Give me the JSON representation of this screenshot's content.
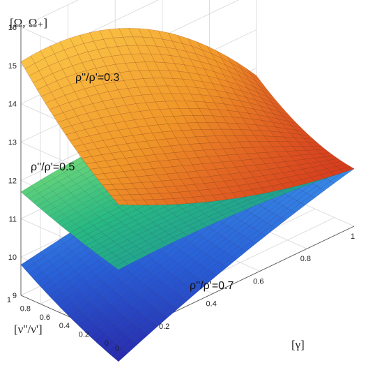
{
  "chart_data": {
    "type": "surface",
    "title": "",
    "zlabel": "[Ω, Ω₊]",
    "xlabel": "[γ]",
    "ylabel": "[ν''/ν']",
    "xlim": [
      0,
      1
    ],
    "ylim": [
      0,
      1
    ],
    "zlim": [
      9,
      16
    ],
    "xticks": [
      "0",
      "0.2",
      "0.4",
      "0.6",
      "0.8",
      "1"
    ],
    "yticks": [
      "0",
      "0.2",
      "0.4",
      "0.6",
      "0.8",
      "1"
    ],
    "zticks": [
      "9",
      "10",
      "11",
      "12",
      "13",
      "14",
      "15",
      "16"
    ],
    "grid": true,
    "series": [
      {
        "name": "ρ''/ρ'=0.3",
        "colormap": "orange-red",
        "x": [
          0,
          0.5,
          1
        ],
        "y": [
          0,
          0.5,
          1
        ],
        "z": [
          [
            12.5,
            11.2,
            10.5
          ],
          [
            13.6,
            12.6,
            10.9
          ],
          [
            15.1,
            14.5,
            11.8
          ]
        ]
      },
      {
        "name": "ρ''/ρ'=0.5",
        "colormap": "teal-green",
        "x": [
          0,
          0.5,
          1
        ],
        "y": [
          0,
          0.5,
          1
        ],
        "z": [
          [
            10.8,
            10.8,
            10.5
          ],
          [
            11.2,
            11.2,
            10.8
          ],
          [
            11.7,
            11.9,
            11.6
          ]
        ]
      },
      {
        "name": "ρ''/ρ'=0.7",
        "colormap": "blue",
        "x": [
          0,
          0.5,
          1
        ],
        "y": [
          0,
          0.5,
          1
        ],
        "z": [
          [
            8.4,
            9.6,
            10.5
          ],
          [
            9.0,
            9.9,
            10.6
          ],
          [
            9.8,
            10.3,
            10.7
          ]
        ]
      }
    ],
    "annotations": [
      {
        "text": "ρ''/ρ'=0.3",
        "series": 0
      },
      {
        "text": "ρ''/ρ'=0.5",
        "series": 1
      },
      {
        "text": "ρ''/ρ'=0.7",
        "series": 2
      }
    ]
  }
}
